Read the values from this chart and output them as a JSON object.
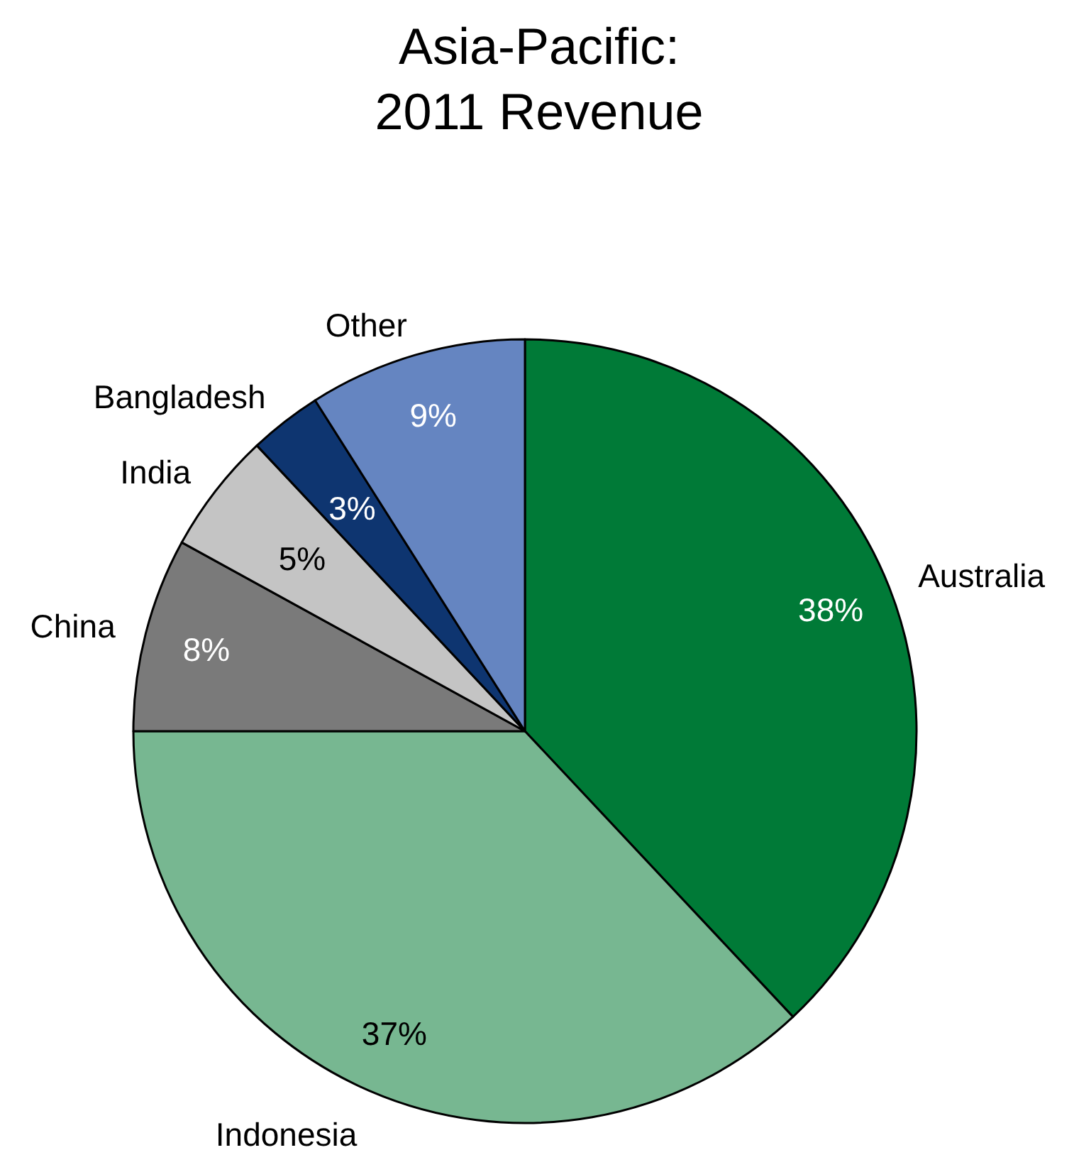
{
  "chart_data": {
    "type": "pie",
    "title": "Asia-Pacific:\n2011 Revenue",
    "categories": [
      "Australia",
      "Indonesia",
      "China",
      "India",
      "Bangladesh",
      "Other"
    ],
    "values": [
      38,
      37,
      8,
      5,
      3,
      9
    ],
    "colors": [
      "#007a37",
      "#77b791",
      "#7a7a7a",
      "#c4c4c4",
      "#0e3570",
      "#6585c1"
    ],
    "value_labels": [
      "38%",
      "37%",
      "8%",
      "5%",
      "3%",
      "9%"
    ]
  }
}
